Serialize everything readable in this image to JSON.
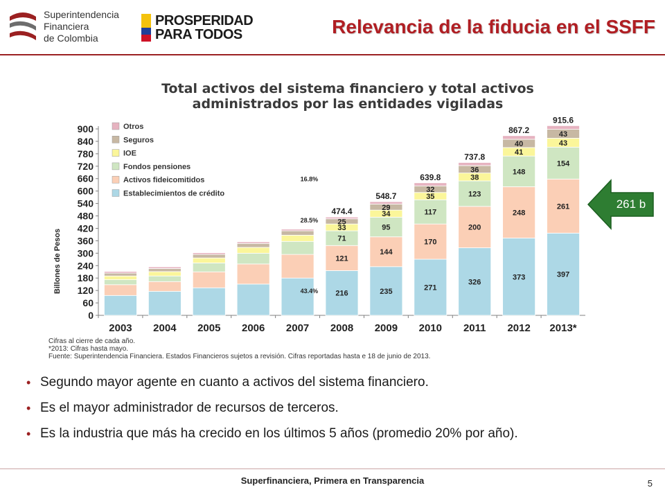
{
  "header": {
    "org_line1": "Superintendencia",
    "org_line2": "Financiera",
    "org_line3": "de Colombia",
    "campaign_line1": "PROSPERIDAD",
    "campaign_line2": "PARA TODOS",
    "title": "Relevancia de la fiducia en el SSFF"
  },
  "chart_data": {
    "type": "bar",
    "stacked": true,
    "title_line1": "Total activos del sistema financiero y total activos",
    "title_line2": "administrados por las entidades vigiladas",
    "ylabel": "Billones de Pesos",
    "xlabel": "",
    "ylim": [
      0,
      900
    ],
    "yticks": [
      0,
      60,
      120,
      180,
      240,
      300,
      360,
      420,
      480,
      540,
      600,
      660,
      720,
      780,
      840,
      900
    ],
    "grid": false,
    "legend_position": "top-left",
    "categories": [
      "2003",
      "2004",
      "2005",
      "2006",
      "2007",
      "2008",
      "2009",
      "2010",
      "2011",
      "2012",
      "2013*"
    ],
    "series": [
      {
        "name": "Establecimientos de crédito",
        "color": "#add8e6",
        "values": [
          96,
          116,
          133,
          151,
          180,
          216,
          235,
          271,
          326,
          373,
          397
        ],
        "labels": [
          "",
          "",
          "",
          "",
          "",
          "216",
          "235",
          "271",
          "326",
          "373",
          "397"
        ]
      },
      {
        "name": "Activos fideicomitidos",
        "color": "#fbcfb6",
        "values": [
          52,
          47,
          77,
          97,
          114,
          121,
          144,
          170,
          200,
          248,
          261
        ],
        "labels": [
          "",
          "",
          "",
          "",
          "",
          "121",
          "144",
          "170",
          "200",
          "248",
          "261"
        ]
      },
      {
        "name": "Fondos pensiones",
        "color": "#cfe6c2",
        "values": [
          24,
          27,
          43,
          52,
          63,
          71,
          95,
          117,
          123,
          148,
          154
        ],
        "labels": [
          "",
          "",
          "",
          "",
          "",
          "71",
          "95",
          "117",
          "123",
          "148",
          "154"
        ]
      },
      {
        "name": "IOE",
        "color": "#fbf69a",
        "values": [
          18,
          21,
          24,
          28,
          30,
          33,
          34,
          35,
          38,
          41,
          43
        ],
        "labels": [
          "",
          "",
          "",
          "",
          "",
          "33",
          "34",
          "35",
          "38",
          "41",
          "43"
        ]
      },
      {
        "name": "Seguros",
        "color": "#c7b8a3",
        "values": [
          14,
          15,
          17,
          19,
          21,
          25,
          29,
          32,
          36,
          40,
          43
        ],
        "labels": [
          "",
          "",
          "",
          "",
          "",
          "25",
          "29",
          "32",
          "36",
          "40",
          "43"
        ]
      },
      {
        "name": "Otros",
        "color": "#e6b3c0",
        "values": [
          8,
          8,
          8,
          8,
          8,
          8.4,
          11.7,
          14.8,
          14.8,
          17.2,
          17.6
        ],
        "labels": [
          "",
          "",
          "",
          "",
          "",
          "",
          "",
          "",
          "",
          "",
          ""
        ]
      }
    ],
    "totals": [
      "",
      "",
      "",
      "",
      "",
      "474.4",
      "548.7",
      "639.8",
      "737.8",
      "867.2",
      "915.6"
    ],
    "annotations": [
      {
        "text": "16.8%",
        "x": "2007",
        "y": 660
      },
      {
        "text": "28.5%",
        "x": "2007",
        "y": 462
      },
      {
        "text": "43.4%",
        "x": "2007",
        "y": 120
      }
    ],
    "notes": [
      "Cifras al cierre de cada año.",
      "*2013: Cifras hasta mayo.",
      "Fuente: Superintendencia Financiera. Estados Financieros sujetos a revisión. Cifras reportadas hasta e 18 de junio de 2013."
    ]
  },
  "callout": {
    "text": "261 b",
    "color": "#2e7d32"
  },
  "bullets": [
    "Segundo mayor agente en cuanto a activos del sistema financiero.",
    "Es el mayor administrador de recursos de terceros.",
    "Es la industria que más ha crecido en los últimos 5 años (promedio 20% por año)."
  ],
  "footer": {
    "text": "Superfinanciera, Primera en Transparencia",
    "page": "5"
  }
}
